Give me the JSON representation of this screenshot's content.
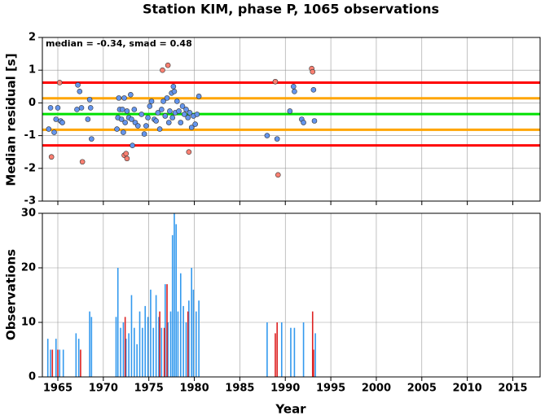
{
  "chart_data": [
    {
      "type": "scatter",
      "title": "Station KIM, phase P, 1065 observations",
      "annotation": "median = -0.34, smad = 0.48",
      "y_label": "Median residual [s]",
      "xlim": [
        1963.3,
        2018
      ],
      "ylim": [
        -3,
        2
      ],
      "xticks": [
        1965,
        1970,
        1975,
        1980,
        1985,
        1990,
        1995,
        2000,
        2005,
        2010,
        2015
      ],
      "yticks": [
        -3,
        -2,
        -1,
        0,
        1,
        2
      ],
      "grid": true,
      "reference_lines": [
        {
          "value": 0.62,
          "color": "#ff0000"
        },
        {
          "value": 0.14,
          "color": "#ffa500"
        },
        {
          "value": -0.34,
          "color": "#00e000"
        },
        {
          "value": -0.82,
          "color": "#ffa500"
        },
        {
          "value": -1.3,
          "color": "#ff0000"
        }
      ],
      "series": [
        {
          "color": "#6495ed",
          "x": [
            1964.0,
            1964.2,
            1964.6,
            1964.8,
            1965.0,
            1965.3,
            1965.5,
            1967.1,
            1967.2,
            1967.4,
            1967.6,
            1968.3,
            1968.5,
            1968.6,
            1968.7,
            1971.5,
            1971.6,
            1971.7,
            1971.8,
            1972.0,
            1972.1,
            1972.2,
            1972.3,
            1972.4,
            1972.6,
            1972.8,
            1973.0,
            1973.1,
            1973.2,
            1973.4,
            1973.5,
            1973.8,
            1974.2,
            1974.5,
            1974.7,
            1974.9,
            1975.1,
            1975.3,
            1975.6,
            1975.8,
            1976.0,
            1976.2,
            1976.4,
            1976.6,
            1976.8,
            1977.0,
            1977.2,
            1977.3,
            1977.5,
            1977.6,
            1977.7,
            1977.8,
            1977.9,
            1978.1,
            1978.3,
            1978.5,
            1978.7,
            1978.9,
            1979.1,
            1979.3,
            1979.5,
            1979.7,
            1979.9,
            1980.1,
            1980.3,
            1980.5,
            1988.0,
            1989.1,
            1990.5,
            1990.9,
            1991.0,
            1991.8,
            1992.0,
            1993.1,
            1993.2
          ],
          "values": [
            -0.8,
            -0.15,
            -0.9,
            -0.5,
            -0.15,
            -0.55,
            -0.6,
            -0.2,
            0.55,
            0.35,
            -0.15,
            -0.5,
            0.1,
            -0.15,
            -1.1,
            -0.8,
            -0.45,
            0.15,
            -0.2,
            -0.5,
            -0.2,
            -0.9,
            0.15,
            -0.6,
            -0.25,
            -0.45,
            0.25,
            -0.5,
            -1.3,
            -0.2,
            -0.6,
            -0.7,
            -0.35,
            -0.95,
            -0.7,
            -0.45,
            -0.1,
            0.05,
            -0.5,
            -0.55,
            -0.3,
            -0.8,
            -0.2,
            0.05,
            -0.4,
            0.15,
            -0.6,
            -0.25,
            0.3,
            -0.45,
            0.5,
            0.35,
            -0.3,
            0.05,
            -0.25,
            -0.6,
            -0.1,
            -0.35,
            -0.2,
            -0.45,
            -0.3,
            -0.75,
            -0.4,
            -0.65,
            -0.35,
            0.2,
            -1.0,
            -1.1,
            -0.25,
            0.5,
            0.35,
            -0.5,
            -0.6,
            0.4,
            -0.55
          ]
        },
        {
          "color": "#fa8072",
          "x": [
            1964.3,
            1965.2,
            1967.7,
            1972.3,
            1972.5,
            1972.6,
            1976.5,
            1977.1,
            1979.4,
            1988.9,
            1989.2,
            1992.9,
            1993.0
          ],
          "values": [
            -1.65,
            0.62,
            -1.8,
            -1.6,
            -1.55,
            -1.7,
            1.0,
            1.15,
            -1.5,
            0.65,
            -2.2,
            1.05,
            0.95
          ]
        }
      ]
    },
    {
      "type": "bar",
      "y_label": "Observations",
      "x_label": "Year",
      "xlim": [
        1963.3,
        2018
      ],
      "ylim": [
        0,
        30
      ],
      "xticks": [
        1965,
        1970,
        1975,
        1980,
        1985,
        1990,
        1995,
        2000,
        2005,
        2010,
        2015
      ],
      "yticks": [
        0,
        10,
        20,
        30
      ],
      "grid": true,
      "series": [
        {
          "color": "#3399ee",
          "x": [
            1963.9,
            1964.2,
            1964.8,
            1965.2,
            1965.6,
            1967.0,
            1967.3,
            1968.5,
            1968.7,
            1971.4,
            1971.6,
            1971.9,
            1972.2,
            1972.5,
            1972.8,
            1973.1,
            1973.4,
            1973.7,
            1974.0,
            1974.3,
            1974.6,
            1974.9,
            1975.2,
            1975.5,
            1975.8,
            1976.1,
            1976.4,
            1976.8,
            1977.1,
            1977.4,
            1977.6,
            1977.8,
            1978.0,
            1978.2,
            1978.5,
            1978.8,
            1979.1,
            1979.4,
            1979.7,
            1979.9,
            1980.2,
            1980.5,
            1988.0,
            1989.6,
            1990.6,
            1991.0,
            1992.0,
            1993.3
          ],
          "values": [
            7,
            5,
            7,
            5,
            5,
            8,
            7,
            12,
            11,
            11,
            20,
            9,
            10,
            7,
            8,
            15,
            9,
            6,
            12,
            9,
            13,
            11,
            16,
            9,
            15,
            11,
            9,
            17,
            10,
            12,
            26,
            30,
            28,
            12,
            19,
            13,
            10,
            14,
            20,
            16,
            12,
            14,
            10,
            10,
            9,
            9,
            10,
            8
          ]
        },
        {
          "color": "#dd2222",
          "x": [
            1964.4,
            1965.0,
            1967.5,
            1972.4,
            1976.2,
            1976.7,
            1977.0,
            1979.3,
            1988.9,
            1989.1,
            1993.0,
            1993.1
          ],
          "values": [
            5,
            5,
            5,
            11,
            12,
            9,
            17,
            12,
            8,
            10,
            12,
            5
          ]
        }
      ]
    }
  ]
}
